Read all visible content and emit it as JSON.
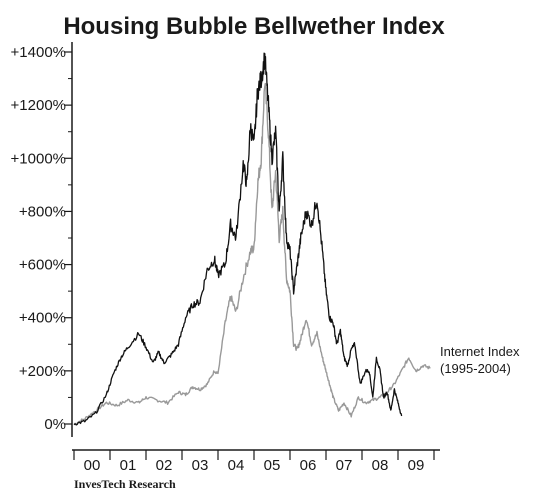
{
  "chart_data": {
    "type": "line",
    "title": "Housing Bubble Bellwether Index",
    "xlabel": "",
    "ylabel": "",
    "x_ticks": [
      "00",
      "01",
      "02",
      "03",
      "04",
      "05",
      "06",
      "07",
      "08",
      "09"
    ],
    "y_ticks": [
      "0%",
      "+200%",
      "+400%",
      "+600%",
      "+800%",
      "+1000%",
      "+1200%",
      "+1400%"
    ],
    "ylim": [
      -100,
      1400
    ],
    "xlim": [
      2000.0,
      2010.0
    ],
    "grid": false,
    "annotation": {
      "text_line1": "Internet Index",
      "text_line2": "(1995-2004)"
    },
    "credit": "InvesTech Research",
    "colors": {
      "housing": "#111111",
      "internet": "#999999",
      "axis": "#1a1a1a"
    },
    "series": [
      {
        "name": "",
        "color": "#111111",
        "x": [
          2000.0,
          2000.3,
          2000.6,
          2000.9,
          2001.1,
          2001.3,
          2001.5,
          2001.8,
          2002.0,
          2002.2,
          2002.35,
          2002.5,
          2002.7,
          2002.9,
          2003.1,
          2003.3,
          2003.5,
          2003.7,
          2003.9,
          2004.0,
          2004.2,
          2004.35,
          2004.5,
          2004.7,
          2004.8,
          2004.9,
          2005.0,
          2005.1,
          2005.2,
          2005.3,
          2005.4,
          2005.5,
          2005.6,
          2005.7,
          2005.8,
          2005.9,
          2006.0,
          2006.1,
          2006.2,
          2006.3,
          2006.45,
          2006.6,
          2006.75,
          2006.9,
          2007.0,
          2007.1,
          2007.2,
          2007.3,
          2007.4,
          2007.5,
          2007.6,
          2007.7,
          2007.8,
          2007.95,
          2008.1,
          2008.2,
          2008.3,
          2008.4,
          2008.5,
          2008.6,
          2008.7,
          2008.8,
          2008.9,
          2009.0,
          2009.1
        ],
        "y": [
          0,
          10,
          40,
          110,
          190,
          250,
          290,
          340,
          290,
          230,
          270,
          230,
          260,
          300,
          400,
          450,
          460,
          580,
          620,
          560,
          600,
          750,
          700,
          980,
          900,
          1120,
          1050,
          1250,
          1300,
          1380,
          1200,
          1000,
          1100,
          800,
          1000,
          700,
          650,
          500,
          600,
          700,
          800,
          750,
          850,
          650,
          500,
          400,
          380,
          300,
          350,
          250,
          220,
          280,
          300,
          150,
          200,
          200,
          100,
          250,
          200,
          100,
          120,
          50,
          130,
          80,
          30
        ]
      },
      {
        "name": "Internet Index (1995-2004)",
        "color": "#999999",
        "x": [
          2000.0,
          2000.3,
          2000.6,
          2000.9,
          2001.2,
          2001.5,
          2001.8,
          2002.0,
          2002.3,
          2002.6,
          2002.9,
          2003.1,
          2003.3,
          2003.5,
          2003.7,
          2003.9,
          2004.0,
          2004.2,
          2004.35,
          2004.5,
          2004.7,
          2004.9,
          2005.0,
          2005.1,
          2005.2,
          2005.3,
          2005.4,
          2005.5,
          2005.6,
          2005.7,
          2005.8,
          2005.9,
          2006.0,
          2006.1,
          2006.2,
          2006.3,
          2006.45,
          2006.6,
          2006.75,
          2006.9,
          2007.0,
          2007.1,
          2007.2,
          2007.35,
          2007.5,
          2007.7,
          2007.9,
          2008.1,
          2008.3,
          2008.5,
          2008.7,
          2008.9,
          2009.1,
          2009.3,
          2009.5,
          2009.7,
          2009.9
        ],
        "y": [
          0,
          20,
          50,
          80,
          70,
          90,
          80,
          100,
          90,
          80,
          120,
          110,
          140,
          130,
          150,
          200,
          190,
          380,
          480,
          420,
          550,
          650,
          660,
          900,
          1000,
          1290,
          1100,
          800,
          950,
          700,
          800,
          550,
          500,
          300,
          280,
          320,
          400,
          300,
          340,
          250,
          200,
          150,
          100,
          50,
          80,
          30,
          100,
          80,
          90,
          100,
          120,
          150,
          200,
          250,
          200,
          220,
          210
        ]
      }
    ]
  }
}
